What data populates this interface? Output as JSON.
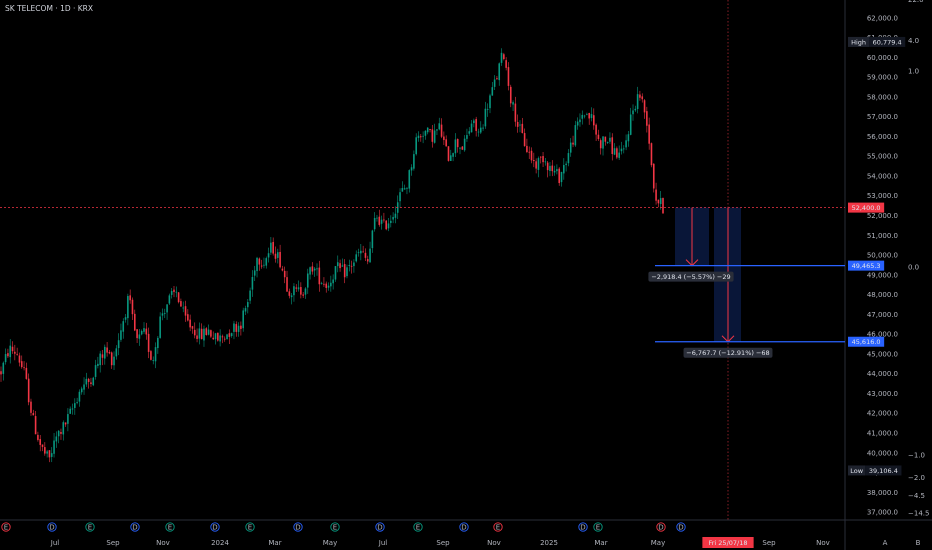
{
  "header": {
    "title": "SK TELECOM · 1D · KRX"
  },
  "chart_data": {
    "type": "candlestick",
    "symbol": "SK TELECOM",
    "interval": "1D",
    "exchange": "KRX",
    "ylim": [
      36600,
      62900
    ],
    "x_ticks": [
      "Jul",
      "Sep",
      "Nov",
      "2024",
      "Mar",
      "May",
      "Jul",
      "Sep",
      "Nov",
      "2025",
      "Mar",
      "May",
      "Sep",
      "Nov"
    ],
    "price_ticks": [
      "62,000.0",
      "61,000.0",
      "60,000.0",
      "59,000.0",
      "58,000.0",
      "57,000.0",
      "56,000.0",
      "55,000.0",
      "54,000.0",
      "53,000.0",
      "52,000.0",
      "51,000.0",
      "50,000.0",
      "49,000.0",
      "48,000.0",
      "47,000.0",
      "46,000.0",
      "45,000.0",
      "44,000.0",
      "43,000.0",
      "42,000.0",
      "41,000.0",
      "40,000.0",
      "39,000.0",
      "38,000.0",
      "37,000.0"
    ],
    "price_tick_values": [
      62000,
      61000,
      60000,
      59000,
      58000,
      57000,
      56000,
      55000,
      54000,
      53000,
      52000,
      51000,
      50000,
      49000,
      48000,
      47000,
      46000,
      45000,
      44000,
      43000,
      42000,
      41000,
      40000,
      39000,
      38000,
      37000
    ],
    "secondary_axis": [
      {
        "label": "22.0",
        "value": 62930
      },
      {
        "label": "4.0",
        "value": 60850
      },
      {
        "label": "1.0",
        "value": 59320
      },
      {
        "label": "0.0",
        "value": 49400
      },
      {
        "label": "−1.0",
        "value": 39900
      },
      {
        "label": "−2.0",
        "value": 38750
      },
      {
        "label": "−4.5",
        "value": 37850
      },
      {
        "label": "−14.5",
        "value": 36950
      }
    ],
    "high": {
      "label": "High",
      "value": "60,779.4",
      "price": 60779.4
    },
    "low": {
      "label": "Low",
      "value": "39,106.4",
      "price": 39106.4
    },
    "last_price": {
      "value": "52,400.0",
      "price": 52400
    },
    "targets": [
      {
        "value": "49,465.3",
        "price": 49465.3,
        "annotation": "−2,918.4 (−5.57%) −29"
      },
      {
        "value": "45,616.0",
        "price": 45616.0,
        "annotation": "−6,767.7 (−12.91%) −68"
      }
    ],
    "date_marker": "Fri 25/07/18",
    "event_markers": [
      "E",
      "D",
      "E",
      "D",
      "E",
      "D",
      "E",
      "D",
      "E",
      "D",
      "E",
      "D",
      "E",
      "D",
      "E",
      "D"
    ],
    "corner_labels": [
      "A",
      "B"
    ],
    "series": [
      {
        "name": "price path",
        "values": [
          44100,
          45250,
          45050,
          43900,
          41650,
          40300,
          39600,
          40850,
          41400,
          42250,
          43300,
          43600,
          44400,
          45200,
          44700,
          46200,
          47800,
          45600,
          46050,
          44600,
          46900,
          47700,
          48150,
          46800,
          46300,
          45900,
          46200,
          45700,
          45900,
          46300,
          46500,
          47700,
          49900,
          49700,
          50450,
          49700,
          48300,
          48100,
          48300,
          49450,
          48800,
          48450,
          49350,
          49100,
          49550,
          50150,
          49650,
          52050,
          51450,
          51950,
          53000,
          53650,
          55800,
          56300,
          56000,
          56450,
          54950,
          55700,
          55450,
          56700,
          56100,
          57600,
          58800,
          60300,
          57750,
          56350,
          55300,
          54550,
          55000,
          54300,
          53950,
          54950,
          56250,
          57250,
          56950,
          55650,
          55850,
          55150,
          55050,
          57050,
          58250,
          56800,
          52950,
          52400
        ]
      }
    ]
  }
}
